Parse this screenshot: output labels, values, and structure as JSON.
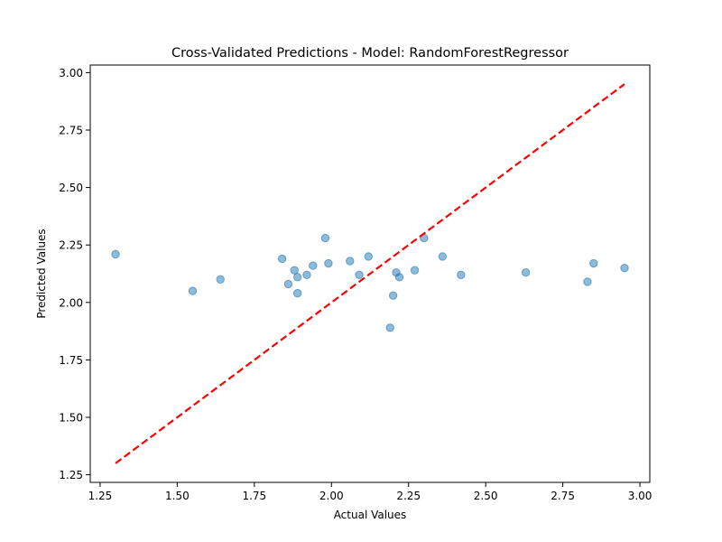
{
  "chart_data": {
    "type": "scatter",
    "title": "Cross-Validated Predictions - Model: RandomForestRegressor",
    "xlabel": "Actual Values",
    "ylabel": "Predicted Values",
    "xlim": [
      1.218,
      3.032
    ],
    "ylim": [
      1.217,
      3.033
    ],
    "xticks": [
      1.25,
      1.5,
      1.75,
      2.0,
      2.25,
      2.5,
      2.75,
      3.0
    ],
    "xtick_labels": [
      "1.25",
      "1.50",
      "1.75",
      "2.00",
      "2.25",
      "2.50",
      "2.75",
      "3.00"
    ],
    "yticks": [
      1.25,
      1.5,
      1.75,
      2.0,
      2.25,
      2.5,
      2.75,
      3.0
    ],
    "ytick_labels": [
      "1.25",
      "1.50",
      "1.75",
      "2.00",
      "2.25",
      "2.50",
      "2.75",
      "3.00"
    ],
    "grid": false,
    "points": {
      "color": "#1f77b4",
      "x": [
        1.3,
        1.55,
        1.64,
        1.84,
        1.86,
        1.88,
        1.89,
        1.89,
        1.92,
        1.94,
        1.98,
        1.99,
        2.06,
        2.09,
        2.12,
        2.19,
        2.2,
        2.21,
        2.22,
        2.27,
        2.3,
        2.36,
        2.42,
        2.63,
        2.83,
        2.85,
        2.95
      ],
      "y": [
        2.21,
        2.05,
        2.1,
        2.19,
        2.08,
        2.14,
        2.11,
        2.04,
        2.12,
        2.16,
        2.28,
        2.17,
        2.18,
        2.12,
        2.2,
        1.89,
        2.03,
        2.13,
        2.11,
        2.14,
        2.28,
        2.2,
        2.12,
        2.13,
        2.09,
        2.17,
        2.15
      ]
    },
    "reference_line": {
      "color": "#ff0000",
      "style": "dashed",
      "x": [
        1.3,
        2.95
      ],
      "y": [
        1.3,
        2.95
      ]
    }
  }
}
